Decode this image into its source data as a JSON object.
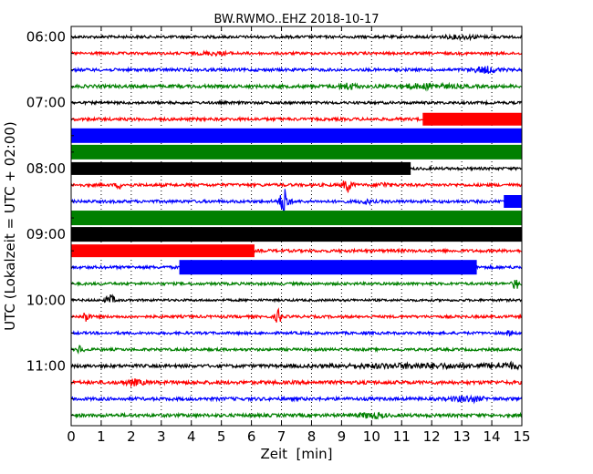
{
  "chart_data": {
    "type": "line",
    "title": "BW.RWMO..EHZ 2018-10-17",
    "xlabel": "Zeit  [min]",
    "ylabel": "UTC (Lokalzeit = UTC + 02:00)",
    "xlim": [
      0,
      15
    ],
    "x_ticks": [
      "0",
      "1",
      "2",
      "3",
      "4",
      "5",
      "6",
      "7",
      "8",
      "9",
      "10",
      "11",
      "12",
      "13",
      "14",
      "15"
    ],
    "y_tick_labels": [
      "06:00",
      "07:00",
      "08:00",
      "09:00",
      "10:00",
      "11:00"
    ],
    "grid": true,
    "colors": {
      "black": "#000000",
      "red": "#ff0000",
      "blue": "#0000ff",
      "green": "#008000"
    },
    "series": [
      {
        "start": "06:00",
        "color": "black",
        "noise": 0.9,
        "events": [
          {
            "x": 13.0,
            "amp": 1.5,
            "width": 0.6
          }
        ]
      },
      {
        "start": "06:15",
        "color": "red",
        "noise": 0.9,
        "events": [
          {
            "x": 4.8,
            "amp": 1.4,
            "width": 0.5
          }
        ]
      },
      {
        "start": "06:30",
        "color": "blue",
        "noise": 1.0,
        "events": [
          {
            "x": 13.8,
            "amp": 3.0,
            "width": 0.4
          }
        ]
      },
      {
        "start": "06:45",
        "color": "green",
        "noise": 1.1,
        "events": [
          {
            "x": 9.2,
            "amp": 3.0,
            "width": 0.3
          },
          {
            "x": 11.8,
            "amp": 2.0,
            "width": 1.0
          }
        ]
      },
      {
        "start": "07:00",
        "color": "black",
        "noise": 0.9,
        "events": []
      },
      {
        "start": "07:15",
        "color": "red",
        "noise": 1.0,
        "events": [],
        "bands": [
          {
            "from": 11.7,
            "to": 15,
            "amp": 7
          }
        ]
      },
      {
        "start": "07:30",
        "color": "blue",
        "noise": 1.0,
        "events": [],
        "bands": [
          {
            "from": 0,
            "to": 15,
            "amp": 8
          }
        ]
      },
      {
        "start": "07:45",
        "color": "green",
        "noise": 1.0,
        "events": [],
        "bands": [
          {
            "from": 0,
            "to": 15,
            "amp": 8
          }
        ]
      },
      {
        "start": "08:00",
        "color": "black",
        "noise": 0.9,
        "events": [],
        "bands": [
          {
            "from": 0,
            "to": 11.3,
            "amp": 7
          }
        ]
      },
      {
        "start": "08:15",
        "color": "red",
        "noise": 1.0,
        "events": [
          {
            "x": 1.6,
            "amp": 3.0,
            "width": 0.1
          },
          {
            "x": 9.2,
            "amp": 7.0,
            "width": 0.15
          },
          {
            "x": 10.4,
            "amp": 2.0,
            "width": 0.2
          }
        ]
      },
      {
        "start": "08:30",
        "color": "blue",
        "noise": 1.0,
        "events": [
          {
            "x": 7.1,
            "amp": 14.0,
            "width": 0.15
          },
          {
            "x": 9.8,
            "amp": 2.0,
            "width": 0.2
          }
        ],
        "bands": [
          {
            "from": 14.4,
            "to": 15,
            "amp": 7
          }
        ]
      },
      {
        "start": "08:45",
        "color": "green",
        "noise": 1.0,
        "events": [],
        "bands": [
          {
            "from": 0,
            "to": 15,
            "amp": 8
          }
        ]
      },
      {
        "start": "09:00",
        "color": "black",
        "noise": 1.0,
        "events": [],
        "bands": [
          {
            "from": 0,
            "to": 15,
            "amp": 8
          }
        ]
      },
      {
        "start": "09:15",
        "color": "red",
        "noise": 1.0,
        "events": [],
        "bands": [
          {
            "from": 0,
            "to": 6.1,
            "amp": 7
          }
        ]
      },
      {
        "start": "09:30",
        "color": "blue",
        "noise": 1.0,
        "events": [],
        "bands": [
          {
            "from": 3.6,
            "to": 13.5,
            "amp": 8
          }
        ]
      },
      {
        "start": "09:45",
        "color": "green",
        "noise": 0.9,
        "events": [
          {
            "x": 14.8,
            "amp": 6.0,
            "width": 0.1
          }
        ]
      },
      {
        "start": "10:00",
        "color": "black",
        "noise": 0.8,
        "events": [
          {
            "x": 1.3,
            "amp": 5.0,
            "width": 0.15
          }
        ]
      },
      {
        "start": "10:15",
        "color": "red",
        "noise": 0.9,
        "events": [
          {
            "x": 0.5,
            "amp": 6.0,
            "width": 0.1
          },
          {
            "x": 6.9,
            "amp": 8.0,
            "width": 0.1
          }
        ]
      },
      {
        "start": "10:30",
        "color": "blue",
        "noise": 0.9,
        "events": [
          {
            "x": 14.6,
            "amp": 3.0,
            "width": 0.1
          }
        ]
      },
      {
        "start": "10:45",
        "color": "green",
        "noise": 0.9,
        "events": [
          {
            "x": 0.3,
            "amp": 4.0,
            "width": 0.1
          }
        ]
      },
      {
        "start": "11:00",
        "color": "black",
        "noise": 1.1,
        "events": [
          {
            "x": 11.5,
            "amp": 1.8,
            "width": 2.5
          },
          {
            "x": 14.5,
            "amp": 2.2,
            "width": 0.6
          }
        ]
      },
      {
        "start": "11:15",
        "color": "red",
        "noise": 1.2,
        "events": [
          {
            "x": 2.1,
            "amp": 2.5,
            "width": 0.3
          }
        ]
      },
      {
        "start": "11:30",
        "color": "blue",
        "noise": 1.1,
        "events": [
          {
            "x": 13.2,
            "amp": 2.5,
            "width": 0.5
          }
        ]
      },
      {
        "start": "11:45",
        "color": "green",
        "noise": 1.1,
        "events": [
          {
            "x": 10.0,
            "amp": 2.5,
            "width": 0.4
          }
        ]
      }
    ]
  }
}
